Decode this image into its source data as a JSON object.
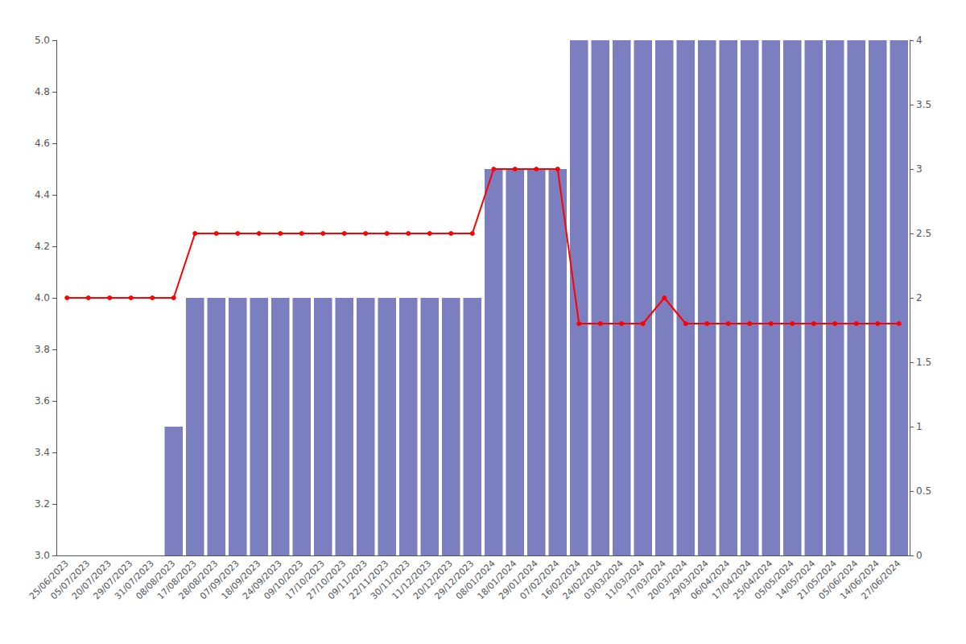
{
  "chart_data": {
    "type": "bar",
    "categories": [
      "25/06/2023",
      "05/07/2023",
      "20/07/2023",
      "29/07/2023",
      "31/07/2023",
      "08/08/2023",
      "17/08/2023",
      "28/08/2023",
      "07/09/2023",
      "18/09/2023",
      "24/09/2023",
      "09/10/2023",
      "17/10/2023",
      "27/10/2023",
      "09/11/2023",
      "22/11/2023",
      "30/11/2023",
      "11/12/2023",
      "20/12/2023",
      "29/12/2023",
      "08/01/2024",
      "18/01/2024",
      "29/01/2024",
      "07/02/2024",
      "16/02/2024",
      "24/02/2024",
      "03/03/2024",
      "11/03/2024",
      "17/03/2024",
      "20/03/2024",
      "29/03/2024",
      "06/04/2024",
      "17/04/2024",
      "25/04/2024",
      "05/05/2024",
      "14/05/2024",
      "21/05/2024",
      "05/06/2024",
      "14/06/2024",
      "27/06/2024"
    ],
    "series": [
      {
        "type": "bar",
        "axis": "y2",
        "color": "#7b7fbf",
        "values": [
          0,
          0,
          0,
          0,
          0,
          1,
          2,
          2,
          2,
          2,
          2,
          2,
          2,
          2,
          2,
          2,
          2,
          2,
          2,
          2,
          3,
          3,
          3,
          3,
          4,
          4,
          4,
          4,
          4,
          4,
          4,
          4,
          4,
          4,
          4,
          4,
          4,
          4,
          4,
          4
        ]
      },
      {
        "type": "line",
        "color": "#ff0000",
        "marker": "circle",
        "values": [
          4.0,
          4.0,
          4.0,
          4.0,
          4.0,
          4.0,
          4.25,
          4.25,
          4.25,
          4.25,
          4.25,
          4.25,
          4.25,
          4.25,
          4.25,
          4.25,
          4.25,
          4.25,
          4.25,
          4.25,
          4.5,
          4.5,
          4.5,
          4.5,
          3.9,
          3.9,
          3.9,
          3.9,
          4.0,
          3.9,
          3.9,
          3.9,
          3.9,
          3.9,
          3.9,
          3.9,
          3.9,
          3.9,
          3.9,
          3.9
        ]
      }
    ],
    "ylim": [
      3.0,
      5.0
    ],
    "yticks": [
      {
        "value": 3.0,
        "label": "3.0"
      },
      3.2,
      3.4,
      3.6,
      3.8,
      {
        "value": 4.0,
        "label": "4.0"
      },
      4.2,
      4.4,
      4.6,
      4.8,
      {
        "value": 5.0,
        "label": "5.0"
      }
    ],
    "y2lim": [
      0,
      4
    ],
    "y2ticks": [
      0,
      0.5,
      1,
      1.5,
      2,
      2.5,
      3,
      3.5,
      4
    ],
    "grid": false
  }
}
